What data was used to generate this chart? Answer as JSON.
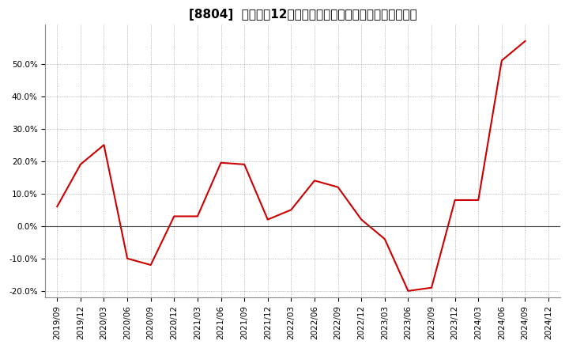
{
  "title": "[8804]  売上高の12か月移動合計の対前年同期増減率の推移",
  "x_labels": [
    "2019/09",
    "2019/12",
    "2020/03",
    "2020/06",
    "2020/09",
    "2020/12",
    "2021/03",
    "2021/06",
    "2021/09",
    "2021/12",
    "2022/03",
    "2022/06",
    "2022/09",
    "2022/12",
    "2023/03",
    "2023/06",
    "2023/09",
    "2023/12",
    "2024/03",
    "2024/06",
    "2024/09",
    "2024/12"
  ],
  "values": [
    6.0,
    19.0,
    25.0,
    -10.0,
    -12.0,
    3.0,
    3.0,
    19.5,
    19.0,
    2.0,
    5.0,
    14.0,
    12.0,
    2.0,
    -4.0,
    -20.0,
    -19.0,
    8.0,
    8.0,
    51.0,
    57.0,
    null
  ],
  "line_color": "#cc0000",
  "background_color": "#ffffff",
  "plot_bg_color": "#ffffff",
  "grid_color": "#888888",
  "ylim": [
    -22,
    62
  ],
  "yticks": [
    -20.0,
    -10.0,
    0.0,
    10.0,
    20.0,
    30.0,
    40.0,
    50.0
  ],
  "zero_line_color": "#444444",
  "title_fontsize": 11,
  "tick_fontsize": 7.5
}
